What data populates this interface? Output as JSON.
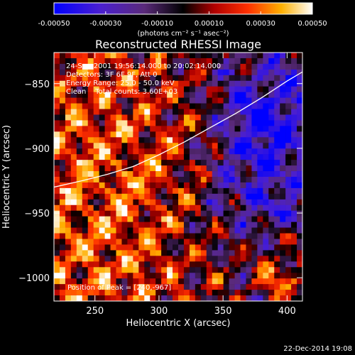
{
  "chart_data": {
    "type": "heatmap",
    "title": "Reconstructed RHESSI Image",
    "xlabel": "Heliocentric X (arcsec)",
    "ylabel": "Heliocentric Y (arcsec)",
    "xlim": [
      218,
      412
    ],
    "ylim": [
      -1018,
      -826
    ],
    "xticks": [
      250,
      300,
      350,
      400
    ],
    "yticks": [
      -850,
      -900,
      -950,
      -1000
    ],
    "xtick_labels": [
      "250",
      "300",
      "350",
      "400"
    ],
    "ytick_labels": [
      "-850",
      "-900",
      "-950",
      "-1000"
    ],
    "colorbar": {
      "range": [
        -0.0005,
        0.0005
      ],
      "ticks": [
        -0.0005,
        -0.0003,
        -0.0001,
        0.0001,
        0.0003,
        0.0005
      ],
      "tick_labels": [
        "-0.00050",
        "-0.00030",
        "-0.00010",
        "0.00010",
        "0.00030",
        "0.00050"
      ],
      "unit_label": "(photons cm⁻² s⁻¹ asec⁻²)",
      "colormap": "blue-purple-black-red-orange-yellow-white"
    },
    "annotations": {
      "time_range": "24-Sep-2001 19:56:14.000 to 20:02:14.000",
      "detectors": "Detectors: 3F 6F 9F, Att 0",
      "energy_range": "Energy Range: 25.0 - 50.0 keV",
      "method": "Clean    Total counts: 3.60E+03",
      "peak": "Position of Peak = [240,-967]"
    },
    "limb_curve": {
      "x": [
        218,
        240,
        260,
        280,
        300,
        320,
        340,
        360,
        380,
        400,
        412
      ],
      "y": [
        -930,
        -925,
        -920,
        -914,
        -905,
        -895,
        -884,
        -873,
        -861,
        -848,
        -841
      ]
    },
    "peak_position": [
      240,
      -967
    ],
    "grid": false
  },
  "footer": {
    "timestamp": "22-Dec-2014 19:08"
  }
}
